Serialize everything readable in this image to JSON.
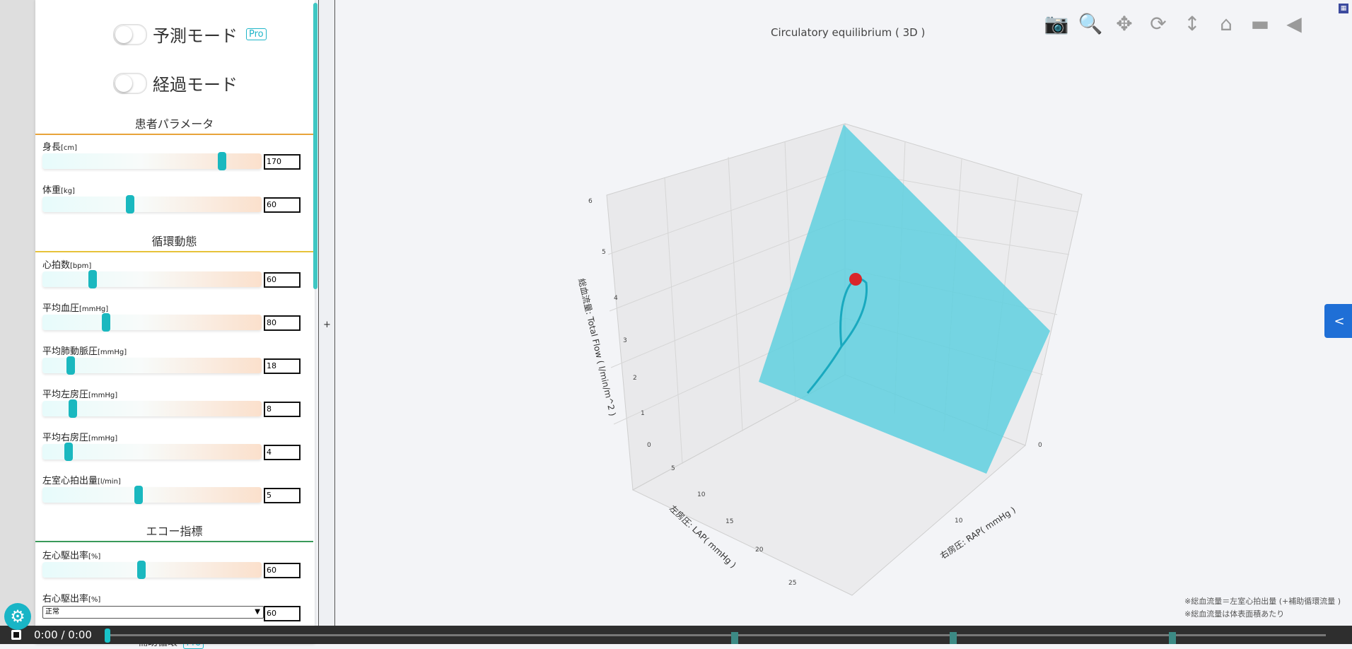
{
  "modes": {
    "predict": {
      "label": "予測モード",
      "badge": "Pro"
    },
    "progress": {
      "label": "経過モード"
    }
  },
  "sections": {
    "patient": "患者パラメータ",
    "circulation": "循環動態",
    "echo": "エコー指標",
    "assist": "補助循環",
    "assist_badge": "Pro"
  },
  "params": [
    {
      "name": "身長",
      "unit": "[cm]",
      "value": "170",
      "slider_fraction": 0.82
    },
    {
      "name": "体重",
      "unit": "[kg]",
      "value": "60",
      "slider_fraction": 0.4
    },
    {
      "name": "心拍数",
      "unit": "[bpm]",
      "value": "60",
      "slider_fraction": 0.23
    },
    {
      "name": "平均血圧",
      "unit": "[mmHg]",
      "value": "80",
      "slider_fraction": 0.29
    },
    {
      "name": "平均肺動脈圧",
      "unit": "[mmHg]",
      "value": "18",
      "slider_fraction": 0.13
    },
    {
      "name": "平均左房圧",
      "unit": "[mmHg]",
      "value": "8",
      "slider_fraction": 0.14
    },
    {
      "name": "平均右房圧",
      "unit": "[mmHg]",
      "value": "4",
      "slider_fraction": 0.12
    },
    {
      "name": "左室心拍出量",
      "unit": "[l/min]",
      "value": "5",
      "slider_fraction": 0.44
    },
    {
      "name": "左心駆出率",
      "unit": "[%]",
      "value": "60",
      "slider_fraction": 0.45
    },
    {
      "name": "右心駆出率",
      "unit": "[%]",
      "value": "60",
      "select": "正常"
    }
  ],
  "plot": {
    "title": "Circulatory equilibrium ( 3D )",
    "z_axis_label": "総血流量: Total Flow ( l/min/m^2 )",
    "x_axis_label": "左房圧: LAP( mmHg )",
    "y_axis_label": "右房圧: RAP( mmHg )",
    "z_ticks": [
      "0",
      "1",
      "2",
      "3",
      "4",
      "5",
      "6"
    ],
    "x_ticks": [
      "5",
      "10",
      "15",
      "20",
      "25"
    ],
    "y_ticks": [
      "0",
      "10"
    ],
    "surface_color": "#5fd0df",
    "point_color": "#d9262b"
  },
  "modebar_icons": [
    "camera-icon",
    "zoom-icon",
    "pan-icon",
    "orbit-icon",
    "turntable-icon",
    "home-icon",
    "camera-video-icon",
    "hover-icon"
  ],
  "side_tab": "<",
  "notes": [
    "※総血流量＝左室心拍出量 (+補助循環流量 )",
    "※総血流量は体表面積あたり"
  ],
  "player": {
    "time": "0:00 / 0:00"
  },
  "divider_symbol": "+"
}
